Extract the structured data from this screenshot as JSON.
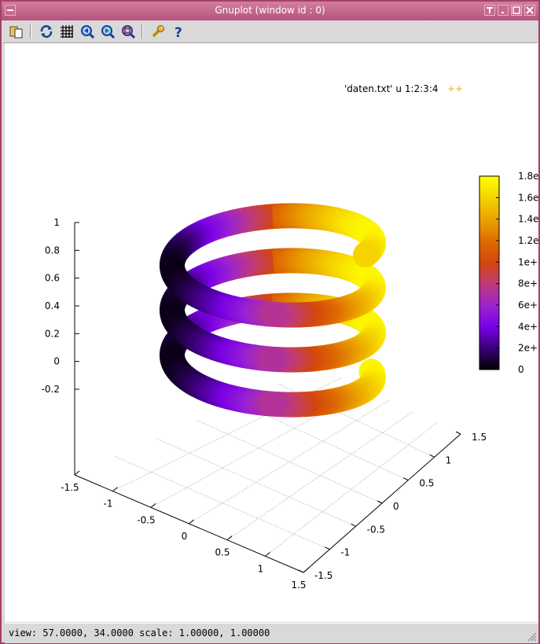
{
  "window": {
    "title": "Gnuplot (window id : 0)"
  },
  "toolbar": {
    "icons": [
      "copy-to-clipboard-icon",
      "replot-icon",
      "grid-icon",
      "zoom-previous-icon",
      "zoom-next-icon",
      "unzoom-icon",
      "options-icon",
      "help-icon"
    ]
  },
  "chart_data": {
    "type": "scatter",
    "subtype": "3d-helix-points",
    "legend_label": "'daten.txt' u 1:2:3:4",
    "legend_marker": "++",
    "view": {
      "rot_x": 57,
      "rot_z": 34,
      "scale": [
        1,
        1
      ]
    },
    "x_ticks": [
      "-1.5",
      "-1",
      "-0.5",
      "0",
      "0.5",
      "1",
      "1.5"
    ],
    "y_ticks": [
      "-1.5",
      "-1",
      "-0.5",
      "0",
      "0.5",
      "1",
      "1.5"
    ],
    "z_ticks": [
      "1",
      "0.8",
      "0.6",
      "0.4",
      "0.2",
      "0",
      "-0.2"
    ],
    "xlim": [
      -1.5,
      1.5
    ],
    "ylim": [
      -1.5,
      1.5
    ],
    "zlim": [
      -0.2,
      1
    ],
    "grid": true,
    "colorbox": {
      "labels": [
        "1.8e",
        "1.6e",
        "1.4e",
        "1.2e",
        "1e+",
        "8e+",
        "6e+",
        "4e+",
        "2e+",
        "0"
      ],
      "palette": [
        "#000000",
        "#3a0078",
        "#7a00e6",
        "#9a23d0",
        "#c03a7a",
        "#d2460f",
        "#de6a00",
        "#eaa000",
        "#f5d000",
        "#ffff00"
      ]
    }
  },
  "status": {
    "text": "view:  57.0000,  34.0000   scale:  1.00000,  1.00000"
  }
}
